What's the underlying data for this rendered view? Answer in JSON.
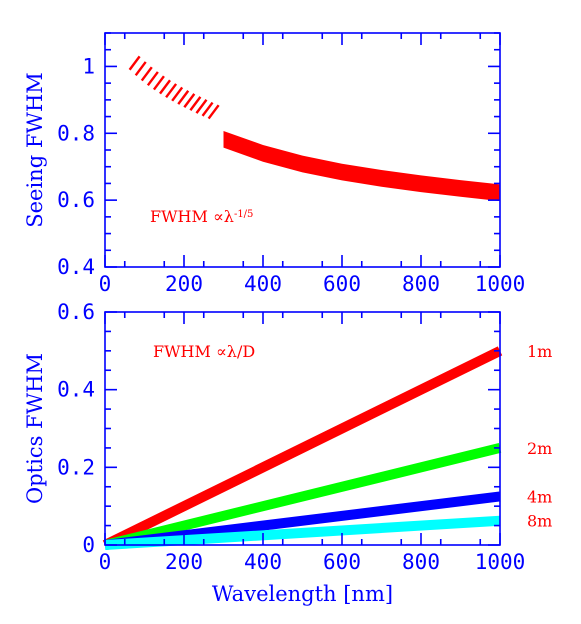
{
  "chart_data": [
    {
      "type": "line",
      "panel": "top",
      "xlabel": "",
      "ylabel": "Seeing FWHM",
      "xlim": [
        0,
        1000
      ],
      "ylim": [
        0.4,
        1.1
      ],
      "xticks": [
        "0",
        "200",
        "400",
        "600",
        "800",
        "1000"
      ],
      "yticks": [
        "0.4",
        "0.6",
        "0.8",
        "1"
      ],
      "annotation": "FWHM ∝λ",
      "annotation_exponent": "-1/5",
      "band_color": "#ff0000",
      "hatched_band": {
        "x": [
          75,
          100,
          125,
          150,
          175,
          200,
          225,
          250,
          275
        ],
        "y_lower": [
          0.99,
          0.963,
          0.94,
          0.92,
          0.902,
          0.886,
          0.871,
          0.857,
          0.844
        ],
        "y_upper": [
          1.03,
          1.003,
          0.98,
          0.96,
          0.942,
          0.926,
          0.911,
          0.897,
          0.884
        ]
      },
      "solid_band": {
        "x": [
          300,
          400,
          500,
          600,
          700,
          800,
          900,
          1000
        ],
        "y_lower": [
          0.757,
          0.715,
          0.683,
          0.659,
          0.64,
          0.624,
          0.61,
          0.597
        ],
        "y_upper": [
          0.807,
          0.765,
          0.733,
          0.709,
          0.69,
          0.674,
          0.66,
          0.647
        ]
      }
    },
    {
      "type": "line",
      "panel": "bottom",
      "xlabel": "Wavelength [nm]",
      "ylabel": "Optics FWHM",
      "xlim": [
        0,
        1000
      ],
      "ylim": [
        0,
        0.6
      ],
      "xticks": [
        "0",
        "200",
        "400",
        "600",
        "800",
        "1000"
      ],
      "yticks": [
        "0",
        "0.2",
        "0.4",
        "0.6"
      ],
      "annotation": "FWHM ∝λ/D",
      "series": [
        {
          "name": "1m",
          "color": "#ff0000",
          "x": [
            0,
            1000
          ],
          "y": [
            0,
            0.5
          ]
        },
        {
          "name": "2m",
          "color": "#00ff00",
          "x": [
            0,
            1000
          ],
          "y": [
            0,
            0.25
          ]
        },
        {
          "name": "4m",
          "color": "#0000ff",
          "x": [
            0,
            1000
          ],
          "y": [
            0,
            0.125
          ]
        },
        {
          "name": "8m",
          "color": "#00ffff",
          "x": [
            0,
            1000
          ],
          "y": [
            0,
            0.0625
          ]
        }
      ]
    }
  ]
}
